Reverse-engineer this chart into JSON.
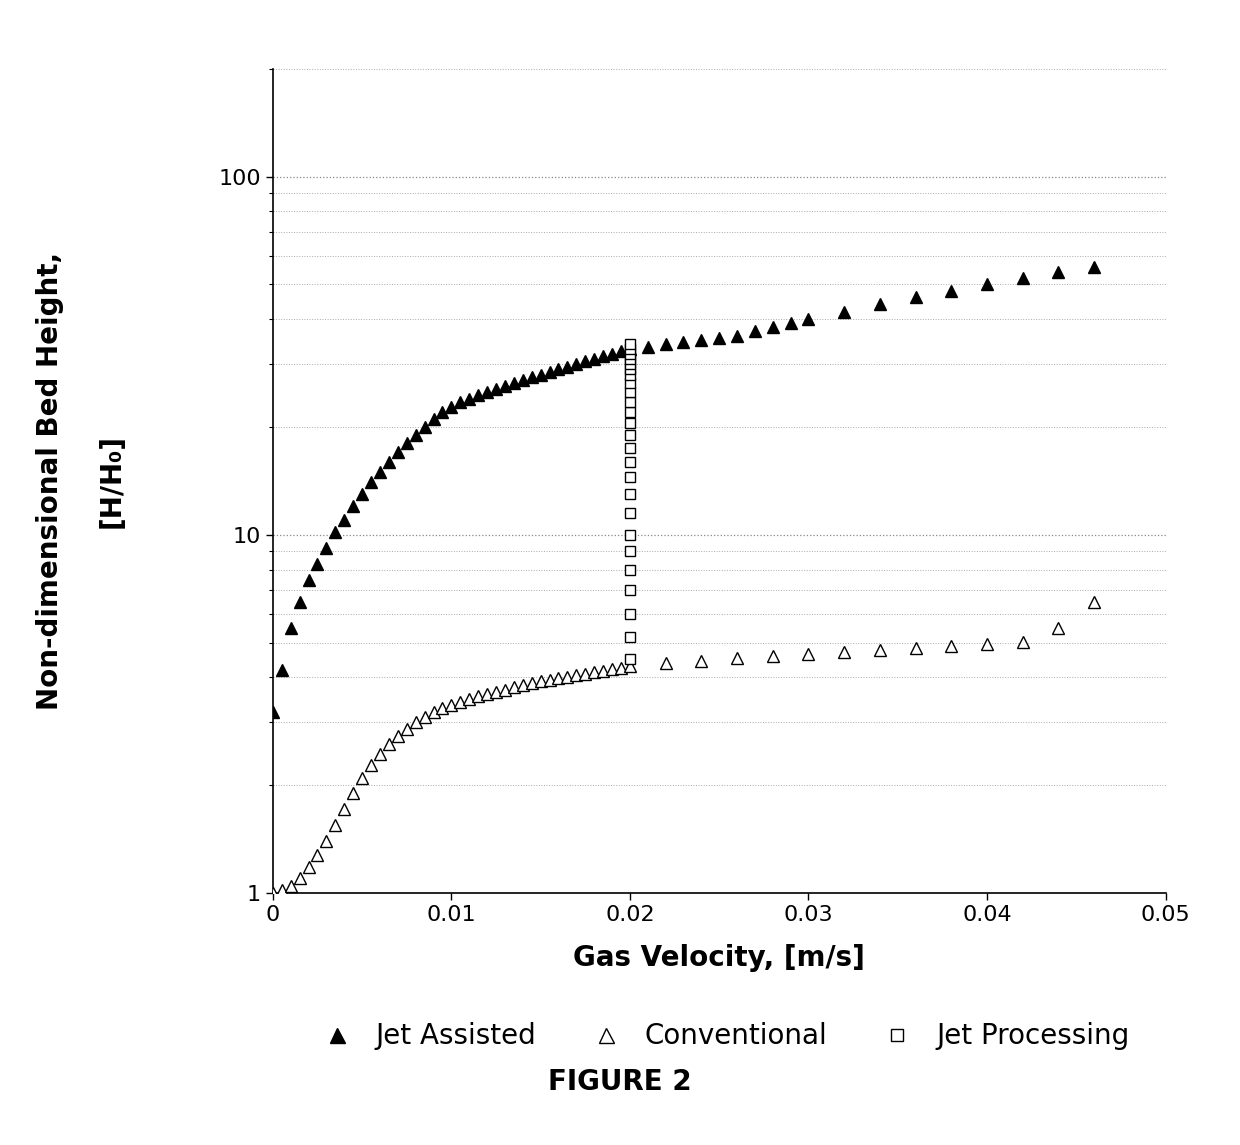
{
  "title": "FIGURE 2",
  "xlabel": "Gas Velocity, [m/s]",
  "ylabel_line1": "Non-dimensional Bed Height,",
  "ylabel_line2": "[H/H₀]",
  "xlim": [
    0,
    0.05
  ],
  "ylim": [
    1,
    200
  ],
  "background_color": "#ffffff",
  "jet_assisted_x": [
    0.0,
    0.0005,
    0.001,
    0.0015,
    0.002,
    0.0025,
    0.003,
    0.0035,
    0.004,
    0.0045,
    0.005,
    0.0055,
    0.006,
    0.0065,
    0.007,
    0.0075,
    0.008,
    0.0085,
    0.009,
    0.0095,
    0.01,
    0.0105,
    0.011,
    0.0115,
    0.012,
    0.0125,
    0.013,
    0.0135,
    0.014,
    0.0145,
    0.015,
    0.0155,
    0.016,
    0.0165,
    0.017,
    0.0175,
    0.018,
    0.0185,
    0.019,
    0.0195,
    0.02,
    0.021,
    0.022,
    0.023,
    0.024,
    0.025,
    0.026,
    0.027,
    0.028,
    0.029,
    0.03,
    0.032,
    0.034,
    0.036,
    0.038,
    0.04,
    0.042,
    0.044,
    0.046
  ],
  "jet_assisted_y": [
    3.2,
    4.2,
    5.5,
    6.5,
    7.5,
    8.3,
    9.2,
    10.2,
    11.0,
    12.0,
    13.0,
    14.0,
    15.0,
    16.0,
    17.0,
    18.0,
    19.0,
    20.0,
    21.0,
    22.0,
    22.8,
    23.5,
    24.0,
    24.5,
    25.0,
    25.5,
    26.0,
    26.5,
    27.0,
    27.5,
    28.0,
    28.5,
    29.0,
    29.5,
    30.0,
    30.5,
    31.0,
    31.5,
    32.0,
    32.5,
    33.0,
    33.5,
    34.0,
    34.5,
    35.0,
    35.5,
    36.0,
    37.0,
    38.0,
    39.0,
    40.0,
    42.0,
    44.0,
    46.0,
    48.0,
    50.0,
    52.0,
    54.0,
    56.0
  ],
  "conventional_x": [
    0.0,
    0.0005,
    0.001,
    0.0015,
    0.002,
    0.0025,
    0.003,
    0.0035,
    0.004,
    0.0045,
    0.005,
    0.0055,
    0.006,
    0.0065,
    0.007,
    0.0075,
    0.008,
    0.0085,
    0.009,
    0.0095,
    0.01,
    0.0105,
    0.011,
    0.0115,
    0.012,
    0.0125,
    0.013,
    0.0135,
    0.014,
    0.0145,
    0.015,
    0.0155,
    0.016,
    0.0165,
    0.017,
    0.0175,
    0.018,
    0.0185,
    0.019,
    0.0195,
    0.02,
    0.022,
    0.024,
    0.026,
    0.028,
    0.03,
    0.032,
    0.034,
    0.036,
    0.038,
    0.04,
    0.042,
    0.044,
    0.046
  ],
  "conventional_y": [
    1.0,
    1.02,
    1.05,
    1.1,
    1.18,
    1.28,
    1.4,
    1.55,
    1.72,
    1.9,
    2.1,
    2.28,
    2.45,
    2.6,
    2.75,
    2.88,
    3.0,
    3.1,
    3.2,
    3.28,
    3.35,
    3.42,
    3.48,
    3.54,
    3.6,
    3.65,
    3.7,
    3.75,
    3.8,
    3.85,
    3.9,
    3.94,
    3.98,
    4.02,
    4.06,
    4.1,
    4.14,
    4.18,
    4.22,
    4.26,
    4.3,
    4.38,
    4.45,
    4.52,
    4.58,
    4.65,
    4.7,
    4.76,
    4.82,
    4.88,
    4.95,
    5.02,
    5.5,
    6.5
  ],
  "jet_processing_x": [
    0.02,
    0.02,
    0.02,
    0.02,
    0.02,
    0.02,
    0.02,
    0.02,
    0.02,
    0.02,
    0.02,
    0.02,
    0.02,
    0.02,
    0.02,
    0.02,
    0.02,
    0.02,
    0.02,
    0.02,
    0.02,
    0.02,
    0.02,
    0.02,
    0.02
  ],
  "jet_processing_y": [
    4.5,
    5.2,
    6.0,
    7.0,
    8.0,
    9.0,
    10.0,
    11.5,
    13.0,
    14.5,
    16.0,
    17.5,
    19.0,
    20.5,
    22.0,
    23.5,
    25.0,
    26.5,
    28.0,
    29.0,
    30.0,
    31.0,
    32.0,
    33.0,
    34.0
  ],
  "legend_labels": [
    "Jet Assisted",
    "Conventional",
    "Jet Processing"
  ],
  "marker_size_filled": 9,
  "marker_size_open": 9,
  "marker_size_square": 7,
  "tick_fontsize": 16,
  "label_fontsize": 20,
  "legend_fontsize": 20,
  "title_fontsize": 20
}
